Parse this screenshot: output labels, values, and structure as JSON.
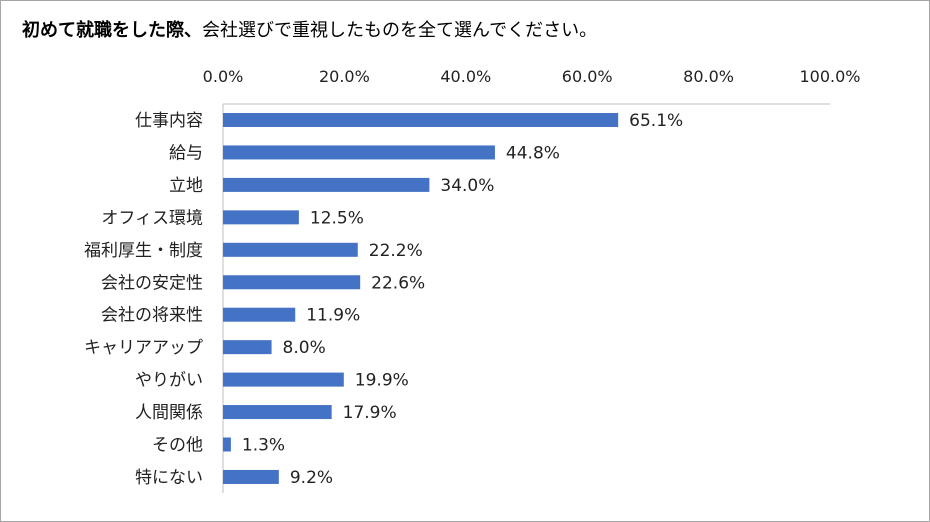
{
  "chart_data": {
    "type": "bar",
    "orientation": "horizontal",
    "title_bold": "初めて就職をした際、",
    "title_rest": "会社選びで重視したものを全て選んでください。",
    "categories": [
      "仕事内容",
      "給与",
      "立地",
      "オフィス環境",
      "福利厚生・制度",
      "会社の安定性",
      "会社の将来性",
      "キャリアアップ",
      "やりがい",
      "人間関係",
      "その他",
      "特にない"
    ],
    "values": [
      65.1,
      44.8,
      34.0,
      12.5,
      22.2,
      22.6,
      11.9,
      8.0,
      19.9,
      17.9,
      1.3,
      9.2
    ],
    "data_labels": [
      "65.1%",
      "44.8%",
      "34.0%",
      "12.5%",
      "22.2%",
      "22.6%",
      "11.9%",
      "8.0%",
      "19.9%",
      "17.9%",
      "1.3%",
      "9.2%"
    ],
    "xlim": [
      0,
      100
    ],
    "x_ticks": [
      "0.0%",
      "20.0%",
      "40.0%",
      "60.0%",
      "80.0%",
      "100.0%"
    ],
    "x_axis_position": "top",
    "grid": false,
    "bar_color": "#4472c4"
  }
}
